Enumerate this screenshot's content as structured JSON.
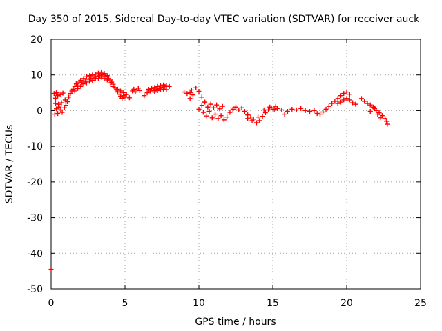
{
  "chart_data": {
    "type": "scatter",
    "title": "Day 350 of 2015, Sidereal Day-to-day VTEC variation (SDTVAR) for receiver auck",
    "xlabel": "GPS time / hours",
    "ylabel": "SDTVAR / TECUs",
    "xlim": [
      0,
      25
    ],
    "ylim": [
      -50,
      20
    ],
    "xticks": [
      0,
      5,
      10,
      15,
      20,
      25
    ],
    "yticks": [
      20,
      10,
      0,
      -10,
      -20,
      -30,
      -40,
      -50
    ],
    "xtick_labels": [
      "0",
      "5",
      "10",
      "15",
      "20",
      "25"
    ],
    "ytick_labels": [
      "20",
      "10",
      "0",
      "-10",
      "-20",
      "-30",
      "-40",
      "-50"
    ],
    "grid": true,
    "marker": "plus",
    "series": [
      {
        "name": "SDTVAR",
        "color": "#ff0000",
        "points": [
          [
            0.0,
            -44.5
          ],
          [
            0.2,
            4.8
          ],
          [
            0.3,
            3.5
          ],
          [
            0.35,
            5.0
          ],
          [
            0.45,
            4.2
          ],
          [
            0.55,
            4.6
          ],
          [
            0.65,
            4.5
          ],
          [
            0.8,
            4.9
          ],
          [
            0.25,
            -1.0
          ],
          [
            0.35,
            0.5
          ],
          [
            0.45,
            -0.8
          ],
          [
            0.55,
            1.0
          ],
          [
            0.65,
            0.2
          ],
          [
            0.75,
            -0.5
          ],
          [
            0.9,
            0.8
          ],
          [
            1.0,
            1.5
          ],
          [
            0.3,
            2.0
          ],
          [
            0.5,
            1.8
          ],
          [
            0.7,
            2.2
          ],
          [
            0.95,
            3.0
          ],
          [
            1.1,
            2.5
          ],
          [
            1.2,
            3.8
          ],
          [
            1.3,
            4.8
          ],
          [
            1.4,
            5.5
          ],
          [
            1.5,
            6.0
          ],
          [
            1.6,
            6.8
          ],
          [
            1.7,
            7.5
          ],
          [
            1.8,
            7.0
          ],
          [
            1.9,
            8.0
          ],
          [
            2.0,
            8.5
          ],
          [
            2.1,
            7.8
          ],
          [
            2.2,
            9.0
          ],
          [
            2.3,
            8.2
          ],
          [
            2.4,
            9.5
          ],
          [
            2.5,
            8.8
          ],
          [
            2.6,
            9.8
          ],
          [
            2.7,
            9.0
          ],
          [
            2.8,
            10.0
          ],
          [
            2.9,
            9.4
          ],
          [
            3.0,
            10.2
          ],
          [
            3.1,
            9.6
          ],
          [
            3.2,
            10.5
          ],
          [
            3.3,
            9.8
          ],
          [
            3.4,
            10.8
          ],
          [
            3.5,
            10.0
          ],
          [
            3.6,
            10.4
          ],
          [
            3.7,
            9.6
          ],
          [
            3.8,
            9.8
          ],
          [
            3.9,
            9.0
          ],
          [
            4.0,
            8.6
          ],
          [
            4.1,
            8.0
          ],
          [
            4.2,
            7.4
          ],
          [
            1.6,
            5.5
          ],
          [
            1.8,
            6.2
          ],
          [
            2.0,
            6.8
          ],
          [
            2.2,
            7.5
          ],
          [
            2.4,
            7.8
          ],
          [
            2.6,
            8.2
          ],
          [
            2.8,
            8.5
          ],
          [
            3.0,
            9.0
          ],
          [
            3.2,
            9.0
          ],
          [
            3.4,
            9.4
          ],
          [
            3.6,
            9.0
          ],
          [
            3.8,
            8.6
          ],
          [
            4.0,
            7.8
          ],
          [
            4.2,
            6.8
          ],
          [
            4.3,
            6.5
          ],
          [
            4.4,
            5.8
          ],
          [
            4.5,
            5.2
          ],
          [
            4.6,
            4.6
          ],
          [
            4.7,
            4.0
          ],
          [
            4.8,
            3.5
          ],
          [
            4.9,
            4.2
          ],
          [
            5.0,
            3.8
          ],
          [
            4.5,
            6.0
          ],
          [
            4.7,
            5.5
          ],
          [
            4.9,
            5.0
          ],
          [
            5.1,
            4.5
          ],
          [
            5.3,
            3.6
          ],
          [
            5.5,
            5.5
          ],
          [
            5.6,
            6.0
          ],
          [
            5.7,
            5.2
          ],
          [
            5.8,
            5.8
          ],
          [
            5.9,
            6.3
          ],
          [
            6.0,
            5.6
          ],
          [
            6.3,
            4.2
          ],
          [
            6.5,
            5.0
          ],
          [
            6.6,
            6.0
          ],
          [
            6.7,
            5.5
          ],
          [
            6.8,
            6.2
          ],
          [
            6.9,
            5.6
          ],
          [
            7.0,
            6.5
          ],
          [
            7.1,
            6.0
          ],
          [
            7.2,
            6.8
          ],
          [
            7.3,
            6.2
          ],
          [
            7.4,
            7.0
          ],
          [
            7.5,
            6.6
          ],
          [
            7.6,
            7.2
          ],
          [
            7.7,
            6.8
          ],
          [
            7.8,
            7.0
          ],
          [
            7.0,
            5.2
          ],
          [
            7.2,
            5.6
          ],
          [
            7.4,
            5.8
          ],
          [
            7.6,
            6.0
          ],
          [
            7.8,
            5.9
          ],
          [
            8.0,
            6.8
          ],
          [
            9.0,
            5.2
          ],
          [
            9.2,
            4.8
          ],
          [
            9.4,
            5.0
          ],
          [
            9.6,
            4.4
          ],
          [
            9.8,
            6.4
          ],
          [
            10.0,
            5.4
          ],
          [
            10.2,
            3.8
          ],
          [
            9.5,
            5.8
          ],
          [
            10.4,
            2.4
          ],
          [
            9.4,
            3.4
          ],
          [
            10.2,
            1.5
          ],
          [
            10.4,
            2.4
          ],
          [
            10.6,
            1.0
          ],
          [
            10.8,
            1.8
          ],
          [
            11.0,
            0.8
          ],
          [
            11.2,
            1.6
          ],
          [
            11.4,
            0.5
          ],
          [
            11.6,
            1.2
          ],
          [
            10.0,
            0.4
          ],
          [
            10.3,
            -0.5
          ],
          [
            10.5,
            -1.5
          ],
          [
            10.7,
            -0.2
          ],
          [
            10.9,
            -2.0
          ],
          [
            11.1,
            -1.0
          ],
          [
            11.3,
            -2.2
          ],
          [
            11.5,
            -1.4
          ],
          [
            11.7,
            -2.6
          ],
          [
            11.9,
            -1.8
          ],
          [
            12.1,
            -0.5
          ],
          [
            12.3,
            0.4
          ],
          [
            12.5,
            1.0
          ],
          [
            12.7,
            0.2
          ],
          [
            12.9,
            0.8
          ],
          [
            13.1,
            -0.2
          ],
          [
            13.3,
            -1.2
          ],
          [
            13.5,
            -1.8
          ],
          [
            13.7,
            -2.4
          ],
          [
            13.9,
            -3.4
          ],
          [
            14.1,
            -2.8
          ],
          [
            14.3,
            -1.6
          ],
          [
            14.5,
            -0.6
          ],
          [
            14.7,
            0.2
          ],
          [
            14.9,
            0.8
          ],
          [
            15.1,
            0.4
          ],
          [
            15.3,
            0.6
          ],
          [
            13.3,
            -2.2
          ],
          [
            13.6,
            -2.8
          ],
          [
            14.0,
            -1.8
          ],
          [
            14.4,
            0.2
          ],
          [
            14.8,
            1.0
          ],
          [
            15.2,
            1.2
          ],
          [
            15.6,
            0.2
          ],
          [
            15.8,
            -1.0
          ],
          [
            16.0,
            -0.2
          ],
          [
            16.3,
            0.4
          ],
          [
            16.6,
            0.2
          ],
          [
            16.9,
            0.6
          ],
          [
            17.2,
            0.0
          ],
          [
            17.5,
            -0.2
          ],
          [
            17.8,
            0.0
          ],
          [
            18.0,
            -0.8
          ],
          [
            18.2,
            -1.0
          ],
          [
            18.4,
            -0.4
          ],
          [
            18.6,
            0.4
          ],
          [
            18.8,
            1.2
          ],
          [
            19.0,
            2.0
          ],
          [
            19.2,
            2.6
          ],
          [
            19.4,
            3.4
          ],
          [
            19.6,
            4.2
          ],
          [
            19.8,
            4.8
          ],
          [
            20.0,
            5.2
          ],
          [
            20.2,
            4.6
          ],
          [
            19.4,
            2.0
          ],
          [
            19.6,
            2.4
          ],
          [
            19.8,
            3.0
          ],
          [
            20.0,
            3.4
          ],
          [
            20.2,
            3.0
          ],
          [
            20.4,
            2.2
          ],
          [
            20.6,
            1.8
          ],
          [
            21.0,
            3.4
          ],
          [
            21.2,
            2.6
          ],
          [
            21.4,
            2.0
          ],
          [
            21.6,
            1.6
          ],
          [
            21.8,
            1.0
          ],
          [
            22.0,
            0.0
          ],
          [
            22.2,
            -0.6
          ],
          [
            22.4,
            -1.4
          ],
          [
            22.6,
            -2.2
          ],
          [
            22.7,
            -3.0
          ],
          [
            22.75,
            -3.8
          ],
          [
            21.6,
            -0.2
          ],
          [
            21.9,
            0.6
          ],
          [
            22.1,
            -1.0
          ],
          [
            22.3,
            -2.0
          ]
        ]
      }
    ]
  }
}
